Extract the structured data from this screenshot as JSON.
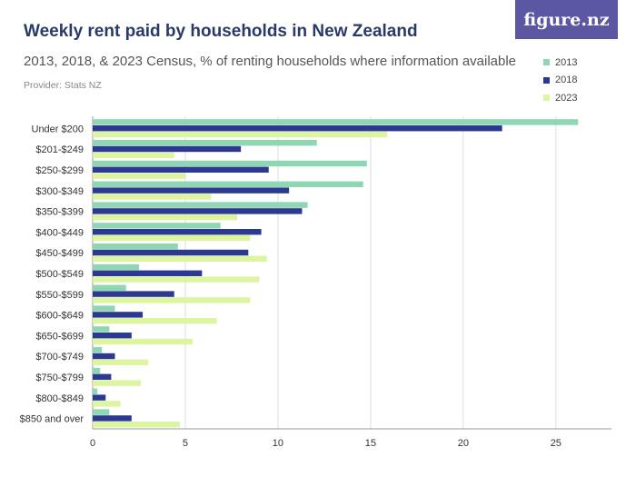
{
  "header": {
    "title": "Weekly rent paid by households in New Zealand",
    "subtitle": "2013, 2018, & 2023 Census, % of renting households where information available",
    "provider": "Provider: Stats NZ",
    "logo_text": "figure.nz"
  },
  "legend": [
    {
      "label": "2013",
      "color": "#8fd6b4"
    },
    {
      "label": "2018",
      "color": "#2b3990"
    },
    {
      "label": "2023",
      "color": "#ddf5a0"
    }
  ],
  "chart_data": {
    "type": "bar",
    "orientation": "horizontal",
    "title": "Weekly rent paid by households in New Zealand",
    "subtitle": "2013, 2018, & 2023 Census, % of renting households where information available",
    "xlabel": "",
    "ylabel": "",
    "xlim": [
      0,
      28
    ],
    "xticks": [
      0,
      5,
      10,
      15,
      20,
      25
    ],
    "grid": true,
    "legend_position": "top-right",
    "categories": [
      "Under $200",
      "$201-$249",
      "$250-$299",
      "$300-$349",
      "$350-$399",
      "$400-$449",
      "$450-$499",
      "$500-$549",
      "$550-$599",
      "$600-$649",
      "$650-$699",
      "$700-$749",
      "$750-$799",
      "$800-$849",
      "$850 and over"
    ],
    "series": [
      {
        "name": "2013",
        "color": "#8fd6b4",
        "values": [
          26.2,
          12.1,
          14.8,
          14.6,
          11.6,
          6.9,
          4.6,
          2.5,
          1.8,
          1.2,
          0.9,
          0.5,
          0.4,
          0.25,
          0.9
        ]
      },
      {
        "name": "2018",
        "color": "#2b3990",
        "values": [
          22.1,
          8.0,
          9.5,
          10.6,
          11.3,
          9.1,
          8.4,
          5.9,
          4.4,
          2.7,
          2.1,
          1.2,
          1.0,
          0.7,
          2.1
        ]
      },
      {
        "name": "2023",
        "color": "#ddf5a0",
        "values": [
          15.9,
          4.4,
          5.0,
          6.4,
          7.8,
          8.5,
          9.4,
          9.0,
          8.5,
          6.7,
          5.4,
          3.0,
          2.6,
          1.5,
          4.7
        ]
      }
    ]
  }
}
